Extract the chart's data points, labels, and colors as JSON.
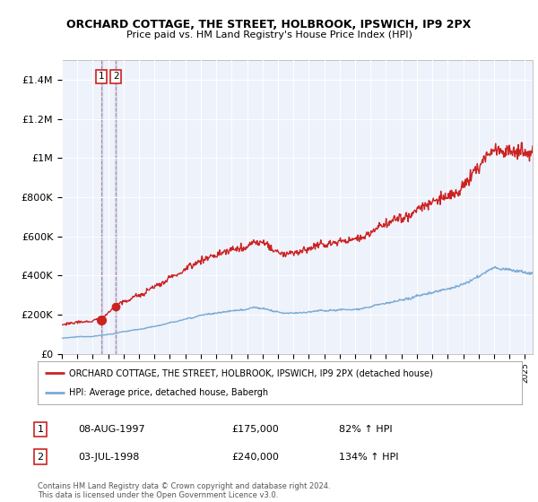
{
  "title": "ORCHARD COTTAGE, THE STREET, HOLBROOK, IPSWICH, IP9 2PX",
  "subtitle": "Price paid vs. HM Land Registry's House Price Index (HPI)",
  "hpi_color": "#7aaad4",
  "property_color": "#cc2222",
  "plot_bg_color": "#eef2fb",
  "ylim": [
    0,
    1500000
  ],
  "yticks": [
    0,
    200000,
    400000,
    600000,
    800000,
    1000000,
    1200000,
    1400000
  ],
  "ytick_labels": [
    "£0",
    "£200K",
    "£400K",
    "£600K",
    "£800K",
    "£1M",
    "£1.2M",
    "£1.4M"
  ],
  "legend_property": "ORCHARD COTTAGE, THE STREET, HOLBROOK, IPSWICH, IP9 2PX (detached house)",
  "legend_hpi": "HPI: Average price, detached house, Babergh",
  "sale1_date": "08-AUG-1997",
  "sale1_price": "£175,000",
  "sale1_hpi": "82% ↑ HPI",
  "sale2_date": "03-JUL-1998",
  "sale2_price": "£240,000",
  "sale2_hpi": "134% ↑ HPI",
  "footer": "Contains HM Land Registry data © Crown copyright and database right 2024.\nThis data is licensed under the Open Government Licence v3.0.",
  "sale1_x": 1997.58,
  "sale1_y": 175000,
  "sale2_x": 1998.49,
  "sale2_y": 240000,
  "xmin": 1995.0,
  "xmax": 2025.5
}
